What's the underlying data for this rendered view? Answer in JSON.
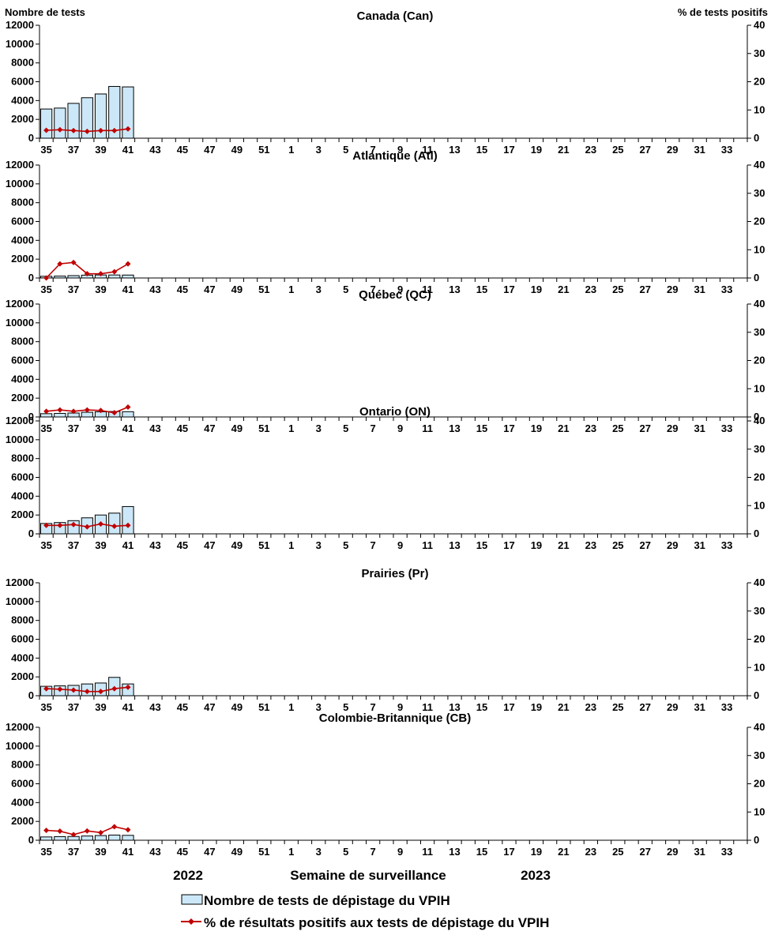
{
  "chart_data": {
    "type": "bar+line",
    "left_axis_title": "Nombre de tests",
    "right_axis_title": "% de tests positifs",
    "x_title": "Semaine de surveillance",
    "season_labels": [
      "2022",
      "2023"
    ],
    "weeks": [
      "35",
      "36",
      "37",
      "38",
      "39",
      "40",
      "41",
      "42",
      "43",
      "44",
      "45",
      "46",
      "47",
      "48",
      "49",
      "50",
      "51",
      "52",
      "1",
      "2",
      "3",
      "4",
      "5",
      "6",
      "7",
      "8",
      "9",
      "10",
      "11",
      "12",
      "13",
      "14",
      "15",
      "16",
      "17",
      "18",
      "19",
      "20",
      "21",
      "22",
      "23",
      "24",
      "25",
      "26",
      "27",
      "28",
      "29",
      "30",
      "31",
      "32",
      "33",
      "34"
    ],
    "x_tick_labels": [
      "35",
      "37",
      "39",
      "41",
      "43",
      "45",
      "47",
      "49",
      "51",
      "1",
      "3",
      "5",
      "7",
      "9",
      "11",
      "13",
      "15",
      "17",
      "19",
      "21",
      "23",
      "25",
      "27",
      "29",
      "31",
      "33"
    ],
    "y_left": {
      "min": 0,
      "max": 12000,
      "ticks": [
        "0",
        "2000",
        "4000",
        "6000",
        "8000",
        "10000",
        "12000"
      ]
    },
    "y_right": {
      "min": 0,
      "max": 40,
      "ticks": [
        "0",
        "10",
        "20",
        "30",
        "40"
      ]
    },
    "legend": {
      "bar": "Nombre de tests de dépistage du VPIH",
      "line": "% de résultats positifs aux tests de dépistage du VPIH"
    },
    "colors": {
      "bar_fill": "#cce8f8",
      "bar_stroke": "#000000",
      "line": "#c00000",
      "axis": "#000000"
    },
    "panels": [
      {
        "title": "Canada (Can)",
        "tests": [
          3100,
          3200,
          3700,
          4300,
          4700,
          5500,
          5450
        ],
        "percent_positive": [
          2.8,
          3.0,
          2.7,
          2.4,
          2.7,
          2.7,
          3.3
        ]
      },
      {
        "title": "Atlantique (Atl)",
        "tests": [
          180,
          200,
          250,
          300,
          320,
          320,
          310
        ],
        "percent_positive": [
          0.0,
          5.0,
          5.5,
          1.5,
          1.5,
          2.2,
          5.0
        ]
      },
      {
        "title": "Québec (QC)",
        "tests": [
          350,
          380,
          420,
          500,
          550,
          580,
          560
        ],
        "percent_positive": [
          2.0,
          2.5,
          2.0,
          2.5,
          2.3,
          1.5,
          3.5
        ]
      },
      {
        "title": "Ontario (ON)",
        "tests": [
          1100,
          1200,
          1400,
          1700,
          2000,
          2200,
          2900
        ],
        "percent_positive": [
          3.0,
          3.0,
          3.3,
          2.5,
          3.5,
          2.7,
          3.0
        ]
      },
      {
        "title": "Prairies (Pr)",
        "tests": [
          1000,
          1050,
          1100,
          1250,
          1350,
          1950,
          1250
        ],
        "percent_positive": [
          2.5,
          2.3,
          2.0,
          1.5,
          1.5,
          2.5,
          3.0
        ]
      },
      {
        "title": "Colombie-Britannique (CB)",
        "tests": [
          350,
          380,
          400,
          450,
          500,
          550,
          520
        ],
        "percent_positive": [
          3.5,
          3.2,
          2.0,
          3.3,
          2.7,
          4.8,
          3.7
        ]
      }
    ]
  }
}
